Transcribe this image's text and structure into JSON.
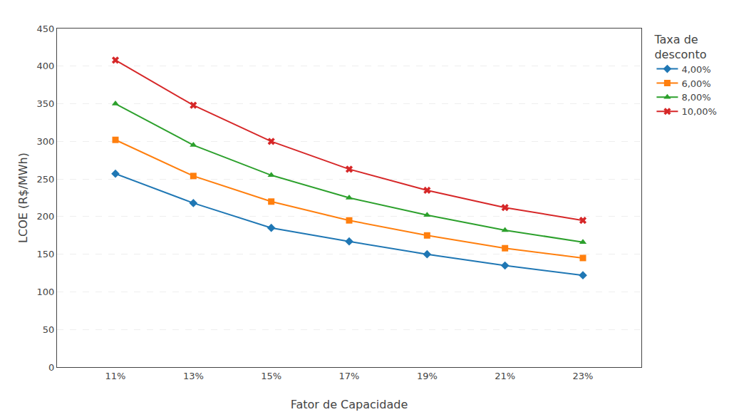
{
  "chart_data": {
    "type": "line",
    "x_label": "Fator de Capacidade",
    "y_label": "LCOE (R$/MWh)",
    "legend_title": "Taxa de\ndesconto",
    "x": [
      11,
      13,
      15,
      17,
      19,
      21,
      23
    ],
    "series": [
      {
        "name": "4,00%",
        "marker": "diamond",
        "values": [
          257,
          218,
          185,
          167,
          150,
          135,
          122
        ]
      },
      {
        "name": "6,00%",
        "marker": "square",
        "values": [
          302,
          254,
          220,
          195,
          175,
          158,
          145
        ]
      },
      {
        "name": "8,00%",
        "marker": "triangle-up",
        "values": [
          350,
          295,
          255,
          225,
          202,
          182,
          166
        ]
      },
      {
        "name": "10,00%",
        "marker": "x",
        "values": [
          408,
          348,
          300,
          263,
          235,
          212,
          195
        ]
      }
    ],
    "xlim": [
      9.5,
      24.5
    ],
    "xticks": [
      {
        "value": 11,
        "label": "11%"
      },
      {
        "value": 13,
        "label": "13%"
      },
      {
        "value": 15,
        "label": "15%"
      },
      {
        "value": 17,
        "label": "17%"
      },
      {
        "value": 19,
        "label": "19%"
      },
      {
        "value": 21,
        "label": "21%"
      },
      {
        "value": 23,
        "label": "23%"
      }
    ],
    "ylim": [
      0,
      450
    ],
    "yticks": [
      0,
      50,
      100,
      150,
      200,
      250,
      300,
      350,
      400,
      450
    ],
    "grid": "y",
    "legend": "upper right"
  }
}
